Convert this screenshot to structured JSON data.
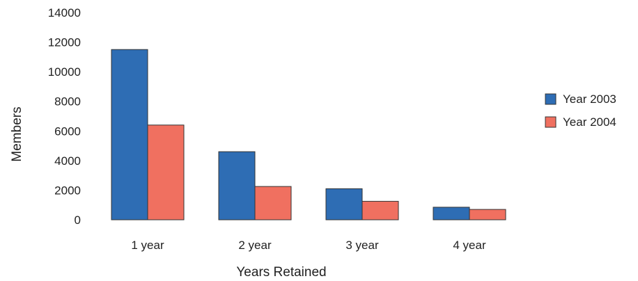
{
  "chart_data": {
    "type": "bar",
    "title": "",
    "xlabel": "Years Retained",
    "ylabel": "Members",
    "categories": [
      "1 year",
      "2 year",
      "3 year",
      "4 year"
    ],
    "yticks": [
      "0",
      "2000",
      "4000",
      "6000",
      "8000",
      "10000",
      "12000",
      "14000"
    ],
    "ylim": [
      0,
      14000
    ],
    "grid": false,
    "legend_position": "right",
    "series": [
      {
        "name": "Year 2003",
        "color": "#2e6db4",
        "values": [
          11500,
          4600,
          2100,
          850
        ]
      },
      {
        "name": "Year 2004",
        "color": "#f07060",
        "values": [
          6400,
          2250,
          1250,
          700
        ]
      }
    ]
  }
}
